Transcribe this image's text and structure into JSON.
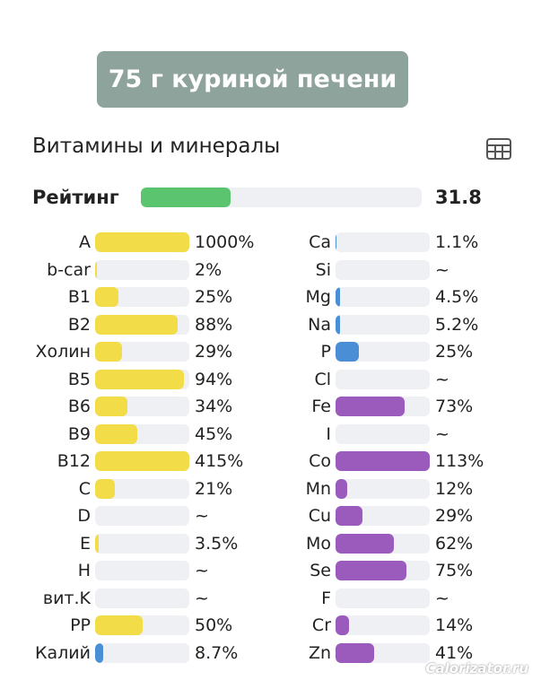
{
  "title": "75 г куриной печени",
  "section": {
    "heading": "Витамины и минералы",
    "rating": {
      "label": "Рейтинг",
      "value": 31.8,
      "color": "#5bc46e",
      "xlim": [
        0,
        100
      ]
    },
    "xlim": [
      0,
      100
    ],
    "columns": [
      [
        {
          "label": "A",
          "value": 1000,
          "value_label": "1000%",
          "color": "#f2dc48"
        },
        {
          "label": "b-car",
          "value": 2,
          "value_label": "2%",
          "color": "#f2dc48"
        },
        {
          "label": "B1",
          "value": 25,
          "value_label": "25%",
          "color": "#f2dc48"
        },
        {
          "label": "B2",
          "value": 88,
          "value_label": "88%",
          "color": "#f2dc48"
        },
        {
          "label": "Холин",
          "value": 29,
          "value_label": "29%",
          "color": "#f2dc48"
        },
        {
          "label": "B5",
          "value": 94,
          "value_label": "94%",
          "color": "#f2dc48"
        },
        {
          "label": "B6",
          "value": 34,
          "value_label": "34%",
          "color": "#f2dc48"
        },
        {
          "label": "B9",
          "value": 45,
          "value_label": "45%",
          "color": "#f2dc48"
        },
        {
          "label": "B12",
          "value": 415,
          "value_label": "415%",
          "color": "#f2dc48"
        },
        {
          "label": "C",
          "value": 21,
          "value_label": "21%",
          "color": "#f2dc48"
        },
        {
          "label": "D",
          "value": null,
          "value_label": "~",
          "color": "#f2dc48"
        },
        {
          "label": "E",
          "value": 3.5,
          "value_label": "3.5%",
          "color": "#f2dc48"
        },
        {
          "label": "H",
          "value": null,
          "value_label": "~",
          "color": "#f2dc48"
        },
        {
          "label": "вит.K",
          "value": null,
          "value_label": "~",
          "color": "#f2dc48"
        },
        {
          "label": "PP",
          "value": 50,
          "value_label": "50%",
          "color": "#f2dc48"
        },
        {
          "label": "Калий",
          "value": 8.7,
          "value_label": "8.7%",
          "color": "#4a8fd6"
        }
      ],
      [
        {
          "label": "Ca",
          "value": 1.1,
          "value_label": "1.1%",
          "color": "#4a8fd6"
        },
        {
          "label": "Si",
          "value": null,
          "value_label": "~",
          "color": "#4a8fd6"
        },
        {
          "label": "Mg",
          "value": 4.5,
          "value_label": "4.5%",
          "color": "#4a8fd6"
        },
        {
          "label": "Na",
          "value": 5.2,
          "value_label": "5.2%",
          "color": "#4a8fd6"
        },
        {
          "label": "P",
          "value": 25,
          "value_label": "25%",
          "color": "#4a8fd6"
        },
        {
          "label": "Cl",
          "value": null,
          "value_label": "~",
          "color": "#9b5bbd"
        },
        {
          "label": "Fe",
          "value": 73,
          "value_label": "73%",
          "color": "#9b5bbd"
        },
        {
          "label": "I",
          "value": null,
          "value_label": "~",
          "color": "#9b5bbd"
        },
        {
          "label": "Co",
          "value": 113,
          "value_label": "113%",
          "color": "#9b5bbd"
        },
        {
          "label": "Mn",
          "value": 12,
          "value_label": "12%",
          "color": "#9b5bbd"
        },
        {
          "label": "Cu",
          "value": 29,
          "value_label": "29%",
          "color": "#9b5bbd"
        },
        {
          "label": "Mo",
          "value": 62,
          "value_label": "62%",
          "color": "#9b5bbd"
        },
        {
          "label": "Se",
          "value": 75,
          "value_label": "75%",
          "color": "#9b5bbd"
        },
        {
          "label": "F",
          "value": null,
          "value_label": "~",
          "color": "#9b5bbd"
        },
        {
          "label": "Cr",
          "value": 14,
          "value_label": "14%",
          "color": "#9b5bbd"
        },
        {
          "label": "Zn",
          "value": 41,
          "value_label": "41%",
          "color": "#9b5bbd"
        }
      ]
    ]
  },
  "watermark": "Calorizator.ru"
}
